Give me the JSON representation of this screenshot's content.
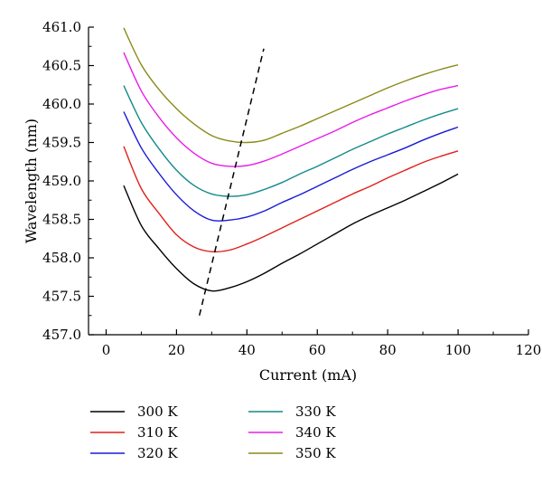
{
  "chart_data": {
    "type": "line",
    "title": "",
    "xlabel": "Current (mA)",
    "ylabel": "Wavelength (nm)",
    "xlim": [
      -5,
      120
    ],
    "ylim": [
      457.0,
      461.0
    ],
    "xticks": [
      0,
      20,
      40,
      60,
      80,
      100,
      120
    ],
    "xtick_labels": [
      "0",
      "20",
      "40",
      "60",
      "80",
      "100",
      "120"
    ],
    "yticks": [
      457.0,
      457.5,
      458.0,
      458.5,
      459.0,
      459.5,
      460.0,
      460.5,
      461.0
    ],
    "ytick_labels": [
      "457.0",
      "457.5",
      "458.0",
      "458.5",
      "459.0",
      "459.5",
      "460.0",
      "460.5",
      "461.0"
    ],
    "grid": false,
    "legend_position": "bottom",
    "x": [
      5,
      10,
      15,
      20,
      25,
      30,
      35,
      40,
      45,
      50,
      55,
      60,
      65,
      70,
      75,
      80,
      85,
      90,
      95,
      100
    ],
    "series": [
      {
        "name": "300 K",
        "color": "#000000",
        "min_x": 30,
        "values": [
          458.94,
          458.42,
          458.12,
          457.86,
          457.66,
          457.57,
          457.61,
          457.69,
          457.8,
          457.93,
          458.05,
          458.18,
          458.31,
          458.44,
          458.55,
          458.65,
          458.75,
          458.86,
          458.97,
          459.09
        ]
      },
      {
        "name": "310 K",
        "color": "#e0201a",
        "min_x": 32,
        "values": [
          459.45,
          458.9,
          458.58,
          458.3,
          458.14,
          458.08,
          458.1,
          458.18,
          458.28,
          458.39,
          458.5,
          458.61,
          458.72,
          458.83,
          458.93,
          459.04,
          459.14,
          459.24,
          459.32,
          459.39
        ]
      },
      {
        "name": "320 K",
        "color": "#1a1ad8",
        "min_x": 34,
        "values": [
          459.9,
          459.43,
          459.1,
          458.82,
          458.61,
          458.49,
          458.49,
          458.53,
          458.61,
          458.72,
          458.82,
          458.93,
          459.04,
          459.15,
          459.25,
          459.34,
          459.43,
          459.53,
          459.62,
          459.7
        ]
      },
      {
        "name": "330 K",
        "color": "#138a8a",
        "min_x": 36,
        "values": [
          460.24,
          459.76,
          459.42,
          459.14,
          458.94,
          458.83,
          458.8,
          458.82,
          458.89,
          458.98,
          459.09,
          459.19,
          459.3,
          459.41,
          459.51,
          459.61,
          459.7,
          459.79,
          459.87,
          459.94
        ]
      },
      {
        "name": "340 K",
        "color": "#e81ee8",
        "min_x": 38,
        "values": [
          460.67,
          460.17,
          459.83,
          459.56,
          459.36,
          459.23,
          459.19,
          459.2,
          459.26,
          459.35,
          459.45,
          459.55,
          459.65,
          459.76,
          459.86,
          459.95,
          460.04,
          460.12,
          460.19,
          460.24
        ]
      },
      {
        "name": "350 K",
        "color": "#8a8a18",
        "min_x": 40,
        "values": [
          460.99,
          460.51,
          460.19,
          459.94,
          459.74,
          459.59,
          459.52,
          459.5,
          459.53,
          459.62,
          459.71,
          459.81,
          459.91,
          460.01,
          460.11,
          460.21,
          460.3,
          460.38,
          460.45,
          460.51
        ]
      }
    ],
    "trend_line": {
      "style": "dashed",
      "color": "#000000",
      "x": [
        26.5,
        44.8
      ],
      "y": [
        457.25,
        460.72
      ]
    }
  }
}
